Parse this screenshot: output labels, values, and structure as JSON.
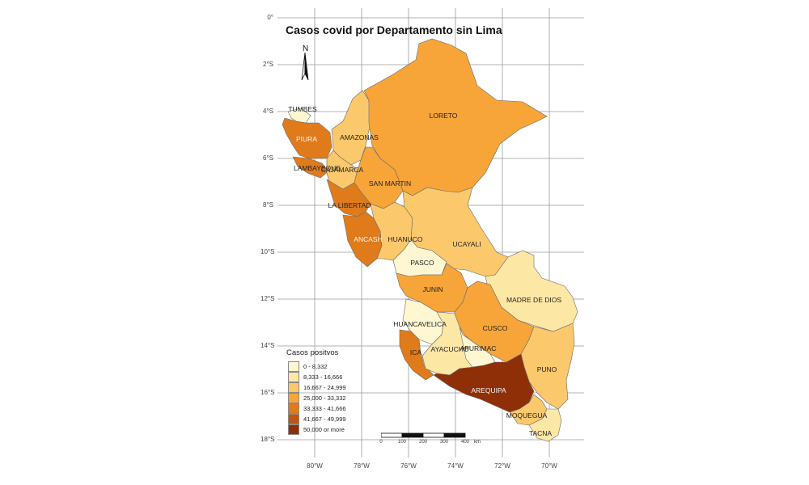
{
  "map": {
    "title": "Casos covid por Departamento sin Lima",
    "north_arrow": "N",
    "lat_labels": [
      "0°",
      "2°S",
      "4°S",
      "6°S",
      "8°S",
      "10°S",
      "12°S",
      "14°S",
      "16°S",
      "18°S"
    ],
    "lon_labels": [
      "80°W",
      "78°W",
      "76°W",
      "74°W",
      "72°W",
      "70°W"
    ]
  },
  "departments": [
    {
      "name": "TUMBES",
      "class": 0
    },
    {
      "name": "PIURA",
      "class": 4
    },
    {
      "name": "LAMBAYEQUE",
      "class": 4
    },
    {
      "name": "CAJAMARCA",
      "class": 2
    },
    {
      "name": "AMAZONAS",
      "class": 2
    },
    {
      "name": "LORETO",
      "class": 3
    },
    {
      "name": "SAN MARTIN",
      "class": 3
    },
    {
      "name": "LA LIBERTAD",
      "class": 4
    },
    {
      "name": "ANCASH",
      "class": 4
    },
    {
      "name": "HUANUCO",
      "class": 2
    },
    {
      "name": "UCAYALI",
      "class": 2
    },
    {
      "name": "PASCO",
      "class": 0
    },
    {
      "name": "JUNIN",
      "class": 3
    },
    {
      "name": "MADRE DE DIOS",
      "class": 1
    },
    {
      "name": "HUANCAVELICA",
      "class": 0
    },
    {
      "name": "CUSCO",
      "class": 3
    },
    {
      "name": "ICA",
      "class": 4
    },
    {
      "name": "AYACUCHO",
      "class": 1
    },
    {
      "name": "APURIMAC",
      "class": 0
    },
    {
      "name": "PUNO",
      "class": 2
    },
    {
      "name": "AREQUIPA",
      "class": 6
    },
    {
      "name": "MOQUEGUA",
      "class": 2
    },
    {
      "name": "TACNA",
      "class": 1
    }
  ],
  "legend": {
    "title": "Casos positvos",
    "items": [
      {
        "label": "0 - 8,332",
        "color": "#fff7d2"
      },
      {
        "label": "8,333 - 16,666",
        "color": "#fde7a5"
      },
      {
        "label": "16,667 - 24,999",
        "color": "#fbc86c"
      },
      {
        "label": "25,000 - 33,332",
        "color": "#f7a538"
      },
      {
        "label": "33,333 - 41,666",
        "color": "#e07b1b"
      },
      {
        "label": "41,667 - 49,999",
        "color": "#c2540b"
      },
      {
        "label": "50,000 or more",
        "color": "#8e2f08"
      }
    ]
  },
  "scalebar": {
    "ticks": [
      "0",
      "100",
      "200",
      "300",
      "400"
    ],
    "unit": "km"
  }
}
